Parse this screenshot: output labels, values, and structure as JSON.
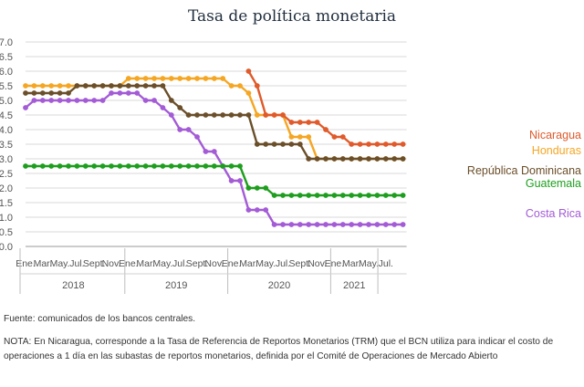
{
  "chart_data": {
    "type": "line",
    "title": "Tasa de política monetaria",
    "xlabel": "",
    "ylabel": "",
    "ylim": [
      0,
      7
    ],
    "yticks": [
      "0.0",
      "0.5",
      "1.0",
      "1.5",
      "2.0",
      "2.5",
      "3.0",
      "3.5",
      "4.0",
      "4.5",
      "5.0",
      "5.5",
      "6.0",
      "6.5",
      "7.0"
    ],
    "x_month_labels": [
      {
        "month": 0,
        "label": "Ene."
      },
      {
        "month": 2,
        "label": "Mar."
      },
      {
        "month": 4,
        "label": "May."
      },
      {
        "month": 6,
        "label": "Jul."
      },
      {
        "month": 8,
        "label": "Sept."
      },
      {
        "month": 10,
        "label": "Nov."
      },
      {
        "month": 12,
        "label": "Ene."
      },
      {
        "month": 14,
        "label": "Mar."
      },
      {
        "month": 16,
        "label": "May."
      },
      {
        "month": 18,
        "label": "Jul."
      },
      {
        "month": 20,
        "label": "Sept."
      },
      {
        "month": 22,
        "label": "Nov."
      },
      {
        "month": 24,
        "label": "Ene."
      },
      {
        "month": 26,
        "label": "Mar."
      },
      {
        "month": 28,
        "label": "May."
      },
      {
        "month": 30,
        "label": "Jul."
      },
      {
        "month": 32,
        "label": "Sept."
      },
      {
        "month": 34,
        "label": "Nov."
      },
      {
        "month": 36,
        "label": "Ene."
      },
      {
        "month": 38,
        "label": "Mar."
      },
      {
        "month": 40,
        "label": "May."
      },
      {
        "month": 42,
        "label": "Jul."
      }
    ],
    "years": [
      {
        "label": "2018",
        "start": 0,
        "end": 12
      },
      {
        "label": "2019",
        "start": 12,
        "end": 24
      },
      {
        "label": "2020",
        "start": 24,
        "end": 36
      },
      {
        "label": "2021",
        "start": 36,
        "end": 41.5
      }
    ],
    "grid": true,
    "series": [
      {
        "name": "Honduras",
        "color": "#f5a623",
        "label_color": "#f5a623",
        "points": [
          [
            0,
            5.5
          ],
          [
            1,
            5.5
          ],
          [
            2,
            5.5
          ],
          [
            3,
            5.5
          ],
          [
            4,
            5.5
          ],
          [
            5,
            5.5
          ],
          [
            6,
            5.5
          ],
          [
            7,
            5.5
          ],
          [
            8,
            5.5
          ],
          [
            9,
            5.5
          ],
          [
            10,
            5.5
          ],
          [
            11,
            5.5
          ],
          [
            12,
            5.75
          ],
          [
            13,
            5.75
          ],
          [
            14,
            5.75
          ],
          [
            15,
            5.75
          ],
          [
            16,
            5.75
          ],
          [
            17,
            5.75
          ],
          [
            18,
            5.75
          ],
          [
            19,
            5.75
          ],
          [
            20,
            5.75
          ],
          [
            21,
            5.75
          ],
          [
            22,
            5.75
          ],
          [
            23,
            5.75
          ],
          [
            24,
            5.5
          ],
          [
            25,
            5.5
          ],
          [
            26,
            5.25
          ],
          [
            27,
            4.5
          ],
          [
            28,
            4.5
          ],
          [
            29,
            4.5
          ],
          [
            30,
            4.5
          ],
          [
            31,
            3.75
          ],
          [
            32,
            3.75
          ],
          [
            33,
            3.75
          ],
          [
            34,
            3.0
          ],
          [
            35,
            3.0
          ],
          [
            36,
            3.0
          ],
          [
            37,
            3.0
          ],
          [
            38,
            3.0
          ],
          [
            39,
            3.0
          ],
          [
            40,
            3.0
          ],
          [
            41,
            3.0
          ],
          [
            42,
            3.0
          ],
          [
            43,
            3.0
          ],
          [
            44,
            3.0
          ]
        ]
      },
      {
        "name": "República Dominicana",
        "color": "#6b4f2a",
        "label_color": "#6b4f2a",
        "points": [
          [
            0,
            5.25
          ],
          [
            1,
            5.25
          ],
          [
            2,
            5.25
          ],
          [
            3,
            5.25
          ],
          [
            4,
            5.25
          ],
          [
            5,
            5.25
          ],
          [
            6,
            5.5
          ],
          [
            7,
            5.5
          ],
          [
            8,
            5.5
          ],
          [
            9,
            5.5
          ],
          [
            10,
            5.5
          ],
          [
            11,
            5.5
          ],
          [
            12,
            5.5
          ],
          [
            13,
            5.5
          ],
          [
            14,
            5.5
          ],
          [
            15,
            5.5
          ],
          [
            16,
            5.5
          ],
          [
            17,
            5.0
          ],
          [
            18,
            4.75
          ],
          [
            19,
            4.5
          ],
          [
            20,
            4.5
          ],
          [
            21,
            4.5
          ],
          [
            22,
            4.5
          ],
          [
            23,
            4.5
          ],
          [
            24,
            4.5
          ],
          [
            25,
            4.5
          ],
          [
            26,
            4.5
          ],
          [
            27,
            3.5
          ],
          [
            28,
            3.5
          ],
          [
            29,
            3.5
          ],
          [
            30,
            3.5
          ],
          [
            31,
            3.5
          ],
          [
            32,
            3.5
          ],
          [
            33,
            3.0
          ],
          [
            34,
            3.0
          ],
          [
            35,
            3.0
          ],
          [
            36,
            3.0
          ],
          [
            37,
            3.0
          ],
          [
            38,
            3.0
          ],
          [
            39,
            3.0
          ],
          [
            40,
            3.0
          ],
          [
            41,
            3.0
          ],
          [
            42,
            3.0
          ],
          [
            43,
            3.0
          ],
          [
            44,
            3.0
          ]
        ]
      },
      {
        "name": "Costa Rica",
        "color": "#a35bd6",
        "label_color": "#a35bd6",
        "points": [
          [
            0,
            4.75
          ],
          [
            1,
            5.0
          ],
          [
            2,
            5.0
          ],
          [
            3,
            5.0
          ],
          [
            4,
            5.0
          ],
          [
            5,
            5.0
          ],
          [
            6,
            5.0
          ],
          [
            7,
            5.0
          ],
          [
            8,
            5.0
          ],
          [
            9,
            5.0
          ],
          [
            10,
            5.25
          ],
          [
            11,
            5.25
          ],
          [
            12,
            5.25
          ],
          [
            13,
            5.25
          ],
          [
            14,
            5.0
          ],
          [
            15,
            5.0
          ],
          [
            16,
            4.75
          ],
          [
            17,
            4.5
          ],
          [
            18,
            4.0
          ],
          [
            19,
            4.0
          ],
          [
            20,
            3.75
          ],
          [
            21,
            3.25
          ],
          [
            22,
            3.25
          ],
          [
            23,
            2.75
          ],
          [
            24,
            2.25
          ],
          [
            25,
            2.25
          ],
          [
            26,
            1.25
          ],
          [
            27,
            1.25
          ],
          [
            28,
            1.25
          ],
          [
            29,
            0.75
          ],
          [
            30,
            0.75
          ],
          [
            31,
            0.75
          ],
          [
            32,
            0.75
          ],
          [
            33,
            0.75
          ],
          [
            34,
            0.75
          ],
          [
            35,
            0.75
          ],
          [
            36,
            0.75
          ],
          [
            37,
            0.75
          ],
          [
            38,
            0.75
          ],
          [
            39,
            0.75
          ],
          [
            40,
            0.75
          ],
          [
            41,
            0.75
          ],
          [
            42,
            0.75
          ],
          [
            43,
            0.75
          ],
          [
            44,
            0.75
          ]
        ]
      },
      {
        "name": "Guatemala",
        "color": "#1e9e1e",
        "label_color": "#1e9e1e",
        "points": [
          [
            0,
            2.75
          ],
          [
            1,
            2.75
          ],
          [
            2,
            2.75
          ],
          [
            3,
            2.75
          ],
          [
            4,
            2.75
          ],
          [
            5,
            2.75
          ],
          [
            6,
            2.75
          ],
          [
            7,
            2.75
          ],
          [
            8,
            2.75
          ],
          [
            9,
            2.75
          ],
          [
            10,
            2.75
          ],
          [
            11,
            2.75
          ],
          [
            12,
            2.75
          ],
          [
            13,
            2.75
          ],
          [
            14,
            2.75
          ],
          [
            15,
            2.75
          ],
          [
            16,
            2.75
          ],
          [
            17,
            2.75
          ],
          [
            18,
            2.75
          ],
          [
            19,
            2.75
          ],
          [
            20,
            2.75
          ],
          [
            21,
            2.75
          ],
          [
            22,
            2.75
          ],
          [
            23,
            2.75
          ],
          [
            24,
            2.75
          ],
          [
            25,
            2.75
          ],
          [
            26,
            2.0
          ],
          [
            27,
            2.0
          ],
          [
            28,
            2.0
          ],
          [
            29,
            1.75
          ],
          [
            30,
            1.75
          ],
          [
            31,
            1.75
          ],
          [
            32,
            1.75
          ],
          [
            33,
            1.75
          ],
          [
            34,
            1.75
          ],
          [
            35,
            1.75
          ],
          [
            36,
            1.75
          ],
          [
            37,
            1.75
          ],
          [
            38,
            1.75
          ],
          [
            39,
            1.75
          ],
          [
            40,
            1.75
          ],
          [
            41,
            1.75
          ],
          [
            42,
            1.75
          ],
          [
            43,
            1.75
          ],
          [
            44,
            1.75
          ]
        ]
      },
      {
        "name": "Nicaragua",
        "color": "#e05a2b",
        "label_color": "#e05a2b",
        "points": [
          [
            26,
            6.0
          ],
          [
            27,
            5.5
          ],
          [
            28,
            4.5
          ],
          [
            29,
            4.5
          ],
          [
            30,
            4.5
          ],
          [
            31,
            4.25
          ],
          [
            32,
            4.25
          ],
          [
            33,
            4.25
          ],
          [
            34,
            4.25
          ],
          [
            35,
            4.0
          ],
          [
            36,
            3.75
          ],
          [
            37,
            3.75
          ],
          [
            38,
            3.5
          ],
          [
            39,
            3.5
          ],
          [
            40,
            3.5
          ],
          [
            41,
            3.5
          ],
          [
            42,
            3.5
          ],
          [
            43,
            3.5
          ],
          [
            44,
            3.5
          ]
        ]
      }
    ]
  },
  "source": "Fuente: comunicados de los bancos centrales.",
  "footnote": "NOTA: En Nicaragua, corresponde a la Tasa de Referencia de Reportos Monetarios (TRM) que el BCN utiliza para indicar el costo de operaciones a 1 día en las subastas de reportos monetarios, definida por el Comité de Operaciones de Mercado Abierto"
}
